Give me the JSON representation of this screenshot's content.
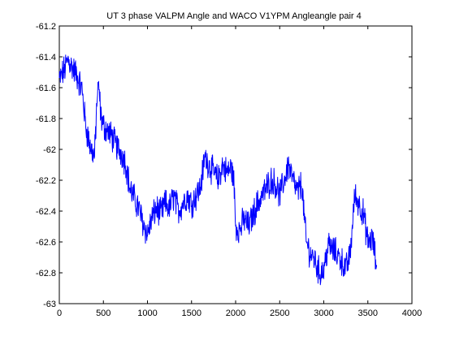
{
  "chart_data": {
    "type": "line",
    "title": "UT 3 phase VALPM Angle and WACO V1YPM Angleangle pair 4",
    "xlabel": "",
    "ylabel": "",
    "xlim": [
      0,
      4000
    ],
    "ylim": [
      -63,
      -61.2
    ],
    "xticks": [
      0,
      500,
      1000,
      1500,
      2000,
      2500,
      3000,
      3500,
      4000
    ],
    "yticks": [
      -61.2,
      -61.4,
      -61.6,
      -61.8,
      -62,
      -62.2,
      -62.4,
      -62.6,
      -62.8,
      -63
    ],
    "xtick_labels": [
      "0",
      "500",
      "1000",
      "1500",
      "2000",
      "2500",
      "3000",
      "3500",
      "4000"
    ],
    "ytick_labels": [
      "-61.2",
      "-61.4",
      "-61.6",
      "-61.8",
      "-62",
      "-62.2",
      "-62.4",
      "-62.6",
      "-62.8",
      "-63"
    ],
    "grid": false,
    "line_color": "#0000ff",
    "series": [
      {
        "x": [
          0,
          60,
          100,
          150,
          200,
          260,
          300,
          350,
          400,
          430,
          450,
          470,
          500,
          550,
          600,
          650,
          700,
          750,
          800,
          850,
          900,
          950,
          1000,
          1050,
          1100,
          1150,
          1200,
          1250,
          1300,
          1350,
          1400,
          1450,
          1500,
          1550,
          1600,
          1650,
          1700,
          1750,
          1800,
          1850,
          1900,
          1950,
          1980,
          2000,
          2050,
          2100,
          2150,
          2200,
          2250,
          2300,
          2350,
          2400,
          2450,
          2500,
          2550,
          2600,
          2650,
          2700,
          2750,
          2800,
          2850,
          2900,
          2950,
          3000,
          3050,
          3100,
          3150,
          3200,
          3250,
          3300,
          3350,
          3400,
          3450,
          3500,
          3550,
          3600
        ],
        "y": [
          -61.55,
          -61.48,
          -61.42,
          -61.47,
          -61.52,
          -61.62,
          -61.85,
          -61.98,
          -62.05,
          -61.65,
          -61.6,
          -61.78,
          -61.85,
          -61.88,
          -61.92,
          -61.98,
          -62.02,
          -62.08,
          -62.25,
          -62.32,
          -62.38,
          -62.48,
          -62.55,
          -62.45,
          -62.38,
          -62.42,
          -62.35,
          -62.38,
          -62.3,
          -62.4,
          -62.35,
          -62.3,
          -62.35,
          -62.3,
          -62.25,
          -62.05,
          -62.1,
          -62.15,
          -62.2,
          -62.1,
          -62.15,
          -62.12,
          -62.2,
          -62.5,
          -62.52,
          -62.45,
          -62.5,
          -62.42,
          -62.35,
          -62.3,
          -62.25,
          -62.2,
          -62.22,
          -62.3,
          -62.2,
          -62.1,
          -62.2,
          -62.28,
          -62.22,
          -62.6,
          -62.68,
          -62.72,
          -62.8,
          -62.78,
          -62.62,
          -62.65,
          -62.68,
          -62.72,
          -62.78,
          -62.68,
          -62.3,
          -62.35,
          -62.42,
          -62.6,
          -62.58,
          -62.75
        ]
      }
    ]
  }
}
